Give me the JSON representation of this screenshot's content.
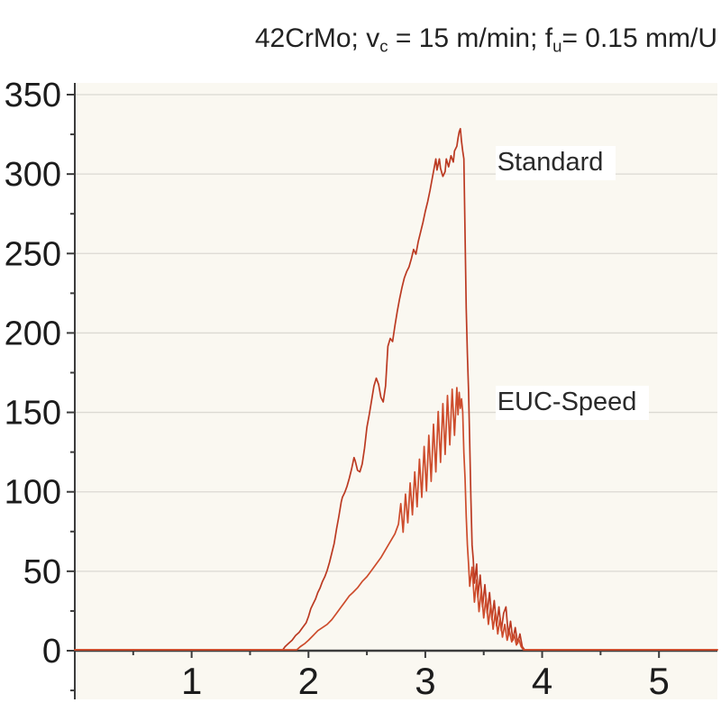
{
  "title": {
    "text": "42CrMo; vc = 15 m/min;  fu= 0.15 mm/U",
    "parts": [
      {
        "t": "42CrMo; v"
      },
      {
        "t": "c",
        "sub": true
      },
      {
        "t": " = 15 m/min;  f"
      },
      {
        "t": "u",
        "sub": true
      },
      {
        "t": "= 0.15 mm/U"
      }
    ]
  },
  "chart_data": {
    "type": "line",
    "title": "42CrMo; vc = 15 m/min; fu = 0.15 mm/U",
    "xlabel": "",
    "ylabel": "",
    "xlim": [
      0,
      5.5
    ],
    "ylim": [
      0,
      350
    ],
    "x_ticks_major": [
      1,
      2,
      3,
      4,
      5
    ],
    "x_ticks_minor": [
      0.5,
      1.5,
      2.5,
      3.5,
      4.5
    ],
    "y_ticks_major": [
      0,
      50,
      100,
      150,
      200,
      250,
      300,
      350
    ],
    "y_ticks_minor": [
      -25,
      25,
      75,
      125,
      175,
      225,
      275,
      325
    ],
    "grid": "horizontal-only",
    "legend_position": "inline-annotations",
    "colors": {
      "plot_bg": "#faf8f1",
      "grid": "#dbd9d2",
      "axis": "#3c3c3c",
      "tick_text": "#1c1c1c"
    },
    "annotations": [
      {
        "text": "Standard",
        "x": 3.6,
        "y": 307
      },
      {
        "text": "EUC-Speed",
        "x": 3.6,
        "y": 156
      }
    ],
    "series": [
      {
        "name": "Standard",
        "color": "#bb3a22",
        "points": [
          [
            0,
            0
          ],
          [
            1.0,
            0
          ],
          [
            1.5,
            0
          ],
          [
            1.78,
            0
          ],
          [
            1.8,
            2
          ],
          [
            1.83,
            4
          ],
          [
            1.86,
            6
          ],
          [
            1.89,
            9
          ],
          [
            1.92,
            11
          ],
          [
            1.95,
            14
          ],
          [
            1.98,
            17
          ],
          [
            2.0,
            21
          ],
          [
            2.02,
            26
          ],
          [
            2.04,
            29
          ],
          [
            2.06,
            32
          ],
          [
            2.08,
            36
          ],
          [
            2.1,
            39
          ],
          [
            2.12,
            43
          ],
          [
            2.14,
            46
          ],
          [
            2.16,
            50
          ],
          [
            2.18,
            55
          ],
          [
            2.2,
            61
          ],
          [
            2.22,
            67
          ],
          [
            2.24,
            76
          ],
          [
            2.26,
            84
          ],
          [
            2.28,
            93
          ],
          [
            2.29,
            96
          ],
          [
            2.31,
            99
          ],
          [
            2.33,
            103
          ],
          [
            2.35,
            108
          ],
          [
            2.37,
            114
          ],
          [
            2.39,
            121
          ],
          [
            2.4,
            119
          ],
          [
            2.42,
            113
          ],
          [
            2.44,
            112
          ],
          [
            2.46,
            117
          ],
          [
            2.48,
            127
          ],
          [
            2.5,
            140
          ],
          [
            2.52,
            148
          ],
          [
            2.54,
            157
          ],
          [
            2.56,
            166
          ],
          [
            2.58,
            171
          ],
          [
            2.6,
            167
          ],
          [
            2.62,
            159
          ],
          [
            2.64,
            156
          ],
          [
            2.66,
            166
          ],
          [
            2.68,
            191
          ],
          [
            2.7,
            196
          ],
          [
            2.72,
            194
          ],
          [
            2.74,
            204
          ],
          [
            2.76,
            213
          ],
          [
            2.78,
            221
          ],
          [
            2.8,
            228
          ],
          [
            2.82,
            234
          ],
          [
            2.84,
            238
          ],
          [
            2.86,
            241
          ],
          [
            2.88,
            246
          ],
          [
            2.9,
            252
          ],
          [
            2.92,
            249
          ],
          [
            2.94,
            257
          ],
          [
            2.96,
            263
          ],
          [
            2.98,
            269
          ],
          [
            3.0,
            276
          ],
          [
            3.02,
            282
          ],
          [
            3.04,
            289
          ],
          [
            3.06,
            297
          ],
          [
            3.08,
            305
          ],
          [
            3.09,
            309
          ],
          [
            3.1,
            302
          ],
          [
            3.12,
            309
          ],
          [
            3.13,
            303
          ],
          [
            3.15,
            298
          ],
          [
            3.17,
            301
          ],
          [
            3.18,
            309
          ],
          [
            3.2,
            304
          ],
          [
            3.22,
            311
          ],
          [
            3.24,
            307
          ],
          [
            3.25,
            314
          ],
          [
            3.27,
            317
          ],
          [
            3.28,
            322
          ],
          [
            3.29,
            326
          ],
          [
            3.3,
            328
          ],
          [
            3.31,
            320
          ],
          [
            3.32,
            314
          ],
          [
            3.33,
            309
          ],
          [
            3.34,
            262
          ],
          [
            3.35,
            215
          ],
          [
            3.36,
            186
          ],
          [
            3.37,
            163
          ],
          [
            3.38,
            130
          ],
          [
            3.39,
            95
          ],
          [
            3.4,
            66
          ],
          [
            3.41,
            57
          ],
          [
            3.42,
            42
          ],
          [
            3.44,
            54
          ],
          [
            3.45,
            33
          ],
          [
            3.47,
            47
          ],
          [
            3.49,
            27
          ],
          [
            3.51,
            41
          ],
          [
            3.53,
            23
          ],
          [
            3.55,
            36
          ],
          [
            3.57,
            19
          ],
          [
            3.59,
            31
          ],
          [
            3.61,
            15
          ],
          [
            3.63,
            27
          ],
          [
            3.65,
            12
          ],
          [
            3.67,
            23
          ],
          [
            3.69,
            27
          ],
          [
            3.71,
            9
          ],
          [
            3.73,
            18
          ],
          [
            3.75,
            6
          ],
          [
            3.77,
            14
          ],
          [
            3.79,
            4
          ],
          [
            3.81,
            10
          ],
          [
            3.83,
            2
          ],
          [
            3.85,
            0
          ],
          [
            4.0,
            0
          ],
          [
            4.5,
            0
          ],
          [
            5.0,
            0
          ],
          [
            5.5,
            0
          ]
        ]
      },
      {
        "name": "EUC-Speed",
        "color": "#cd4c2c",
        "points": [
          [
            0,
            0
          ],
          [
            1.0,
            0
          ],
          [
            1.5,
            0
          ],
          [
            1.9,
            0
          ],
          [
            1.93,
            2
          ],
          [
            1.97,
            4
          ],
          [
            2.0,
            6
          ],
          [
            2.04,
            9
          ],
          [
            2.08,
            12
          ],
          [
            2.12,
            14
          ],
          [
            2.16,
            16
          ],
          [
            2.2,
            19
          ],
          [
            2.24,
            23
          ],
          [
            2.28,
            27
          ],
          [
            2.31,
            30
          ],
          [
            2.35,
            34
          ],
          [
            2.38,
            36
          ],
          [
            2.42,
            39
          ],
          [
            2.46,
            43
          ],
          [
            2.5,
            46
          ],
          [
            2.54,
            50
          ],
          [
            2.58,
            54
          ],
          [
            2.62,
            58
          ],
          [
            2.66,
            63
          ],
          [
            2.7,
            68
          ],
          [
            2.74,
            73
          ],
          [
            2.77,
            79
          ],
          [
            2.79,
            92
          ],
          [
            2.81,
            74
          ],
          [
            2.83,
            98
          ],
          [
            2.85,
            80
          ],
          [
            2.87,
            105
          ],
          [
            2.89,
            85
          ],
          [
            2.91,
            112
          ],
          [
            2.93,
            90
          ],
          [
            2.95,
            120
          ],
          [
            2.97,
            96
          ],
          [
            2.99,
            128
          ],
          [
            3.01,
            100
          ],
          [
            3.03,
            135
          ],
          [
            3.05,
            106
          ],
          [
            3.07,
            142
          ],
          [
            3.09,
            112
          ],
          [
            3.11,
            150
          ],
          [
            3.13,
            118
          ],
          [
            3.15,
            155
          ],
          [
            3.17,
            123
          ],
          [
            3.19,
            160
          ],
          [
            3.21,
            129
          ],
          [
            3.23,
            164
          ],
          [
            3.25,
            135
          ],
          [
            3.27,
            165
          ],
          [
            3.28,
            148
          ],
          [
            3.29,
            162
          ],
          [
            3.3,
            152
          ],
          [
            3.31,
            158
          ],
          [
            3.32,
            150
          ],
          [
            3.33,
            124
          ],
          [
            3.34,
            108
          ],
          [
            3.35,
            84
          ],
          [
            3.36,
            66
          ],
          [
            3.37,
            54
          ],
          [
            3.38,
            40
          ],
          [
            3.4,
            52
          ],
          [
            3.42,
            30
          ],
          [
            3.44,
            44
          ],
          [
            3.46,
            24
          ],
          [
            3.48,
            38
          ],
          [
            3.5,
            20
          ],
          [
            3.52,
            33
          ],
          [
            3.54,
            16
          ],
          [
            3.56,
            28
          ],
          [
            3.58,
            13
          ],
          [
            3.6,
            24
          ],
          [
            3.62,
            10
          ],
          [
            3.64,
            20
          ],
          [
            3.66,
            8
          ],
          [
            3.68,
            16
          ],
          [
            3.7,
            6
          ],
          [
            3.72,
            12
          ],
          [
            3.74,
            5
          ],
          [
            3.76,
            10
          ],
          [
            3.78,
            3
          ],
          [
            3.8,
            7
          ],
          [
            3.82,
            2
          ],
          [
            3.84,
            0
          ],
          [
            4.0,
            0
          ],
          [
            4.5,
            0
          ],
          [
            5.0,
            0
          ],
          [
            5.5,
            0
          ]
        ]
      }
    ]
  }
}
